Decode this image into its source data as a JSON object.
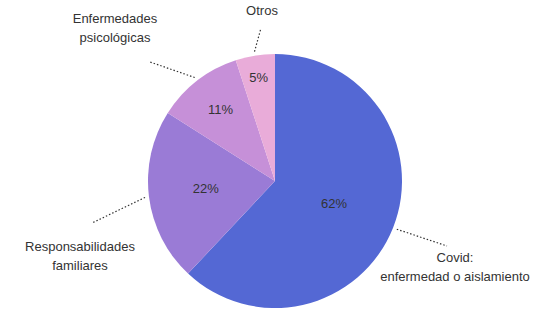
{
  "chart_data": {
    "type": "pie",
    "categories": [
      "Covid:\nenfermedad o aislamiento",
      "Responsabilidades\nfamiliares",
      "Enfermedades\npsicológicas",
      "Otros"
    ],
    "values": [
      62,
      22,
      11,
      5
    ],
    "value_labels": [
      "62%",
      "22%",
      "11%",
      "5%"
    ],
    "colors": [
      "#5468d4",
      "#9a7bd6",
      "#c690d8",
      "#e9acd9"
    ],
    "data_labels": true
  }
}
